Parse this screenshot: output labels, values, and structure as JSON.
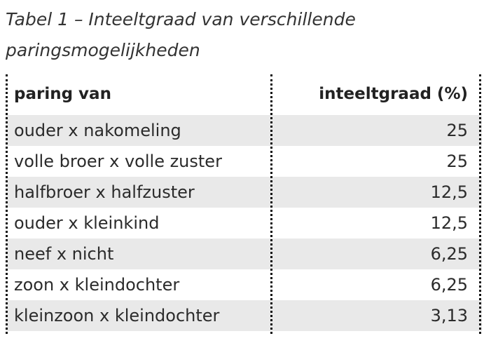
{
  "caption": {
    "line1": "Tabel 1 – Inteeltgraad van verschillende",
    "line2": "paringsmogelijkheden"
  },
  "table": {
    "headers": {
      "left": "paring van",
      "right": "inteeltgraad (%)"
    },
    "rows": [
      {
        "pairing": "ouder x nakomeling",
        "value": "25"
      },
      {
        "pairing": "volle broer x volle zuster",
        "value": "25"
      },
      {
        "pairing": "halfbroer x halfzuster",
        "value": "12,5"
      },
      {
        "pairing": "ouder x kleinkind",
        "value": "12,5"
      },
      {
        "pairing": "neef x nicht",
        "value": "6,25"
      },
      {
        "pairing": "zoon x kleindochter",
        "value": "6,25"
      },
      {
        "pairing": "kleinzoon x kleindochter",
        "value": "3,13"
      }
    ],
    "shaded_color": "#e9e9e9"
  }
}
